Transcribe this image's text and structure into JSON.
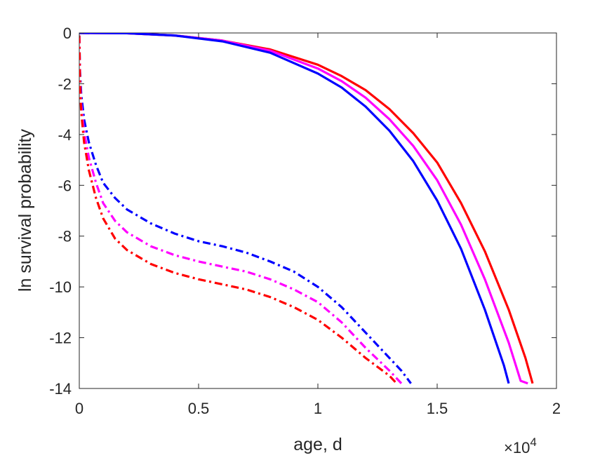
{
  "chart_data": {
    "type": "line",
    "title": "",
    "xlabel": "age, d",
    "ylabel": "ln survival probability",
    "x_exponent_label": "×10",
    "x_exponent_power": "4",
    "xlim": [
      0,
      20000
    ],
    "ylim": [
      -14,
      0
    ],
    "x_ticks": [
      {
        "value": 0,
        "label": "0"
      },
      {
        "value": 5000,
        "label": "0.5"
      },
      {
        "value": 10000,
        "label": "1"
      },
      {
        "value": 15000,
        "label": "1.5"
      },
      {
        "value": 20000,
        "label": "2"
      }
    ],
    "y_ticks": [
      {
        "value": 0,
        "label": "0"
      },
      {
        "value": -2,
        "label": "-2"
      },
      {
        "value": -4,
        "label": "-4"
      },
      {
        "value": -6,
        "label": "-6"
      },
      {
        "value": -8,
        "label": "-8"
      },
      {
        "value": -10,
        "label": "-10"
      },
      {
        "value": -12,
        "label": "-12"
      },
      {
        "value": -14,
        "label": "-14"
      }
    ],
    "grid": false,
    "legend": "none",
    "series": [
      {
        "color": "#ff0000",
        "style": "solid",
        "points": [
          [
            0,
            0
          ],
          [
            2000,
            -0.01
          ],
          [
            4000,
            -0.1
          ],
          [
            6000,
            -0.3
          ],
          [
            8000,
            -0.65
          ],
          [
            10000,
            -1.25
          ],
          [
            11000,
            -1.7
          ],
          [
            12000,
            -2.25
          ],
          [
            13000,
            -3.0
          ],
          [
            14000,
            -3.95
          ],
          [
            15000,
            -5.1
          ],
          [
            16000,
            -6.7
          ],
          [
            17000,
            -8.6
          ],
          [
            18000,
            -10.9
          ],
          [
            18700,
            -12.8
          ],
          [
            19000,
            -13.8
          ]
        ]
      },
      {
        "color": "#ff00ff",
        "style": "solid",
        "points": [
          [
            0,
            0
          ],
          [
            2000,
            -0.01
          ],
          [
            4000,
            -0.1
          ],
          [
            6000,
            -0.3
          ],
          [
            8000,
            -0.7
          ],
          [
            10000,
            -1.4
          ],
          [
            11000,
            -1.9
          ],
          [
            12000,
            -2.55
          ],
          [
            13000,
            -3.4
          ],
          [
            14000,
            -4.45
          ],
          [
            15000,
            -5.8
          ],
          [
            16000,
            -7.55
          ],
          [
            17000,
            -9.7
          ],
          [
            18000,
            -12.2
          ],
          [
            18500,
            -13.7
          ],
          [
            18800,
            -13.8
          ]
        ]
      },
      {
        "color": "#0000ff",
        "style": "solid",
        "points": [
          [
            0,
            0
          ],
          [
            2000,
            -0.01
          ],
          [
            4000,
            -0.1
          ],
          [
            6000,
            -0.33
          ],
          [
            8000,
            -0.78
          ],
          [
            10000,
            -1.6
          ],
          [
            11000,
            -2.15
          ],
          [
            12000,
            -2.9
          ],
          [
            13000,
            -3.85
          ],
          [
            14000,
            -5.05
          ],
          [
            15000,
            -6.6
          ],
          [
            16000,
            -8.5
          ],
          [
            17000,
            -10.9
          ],
          [
            17800,
            -13.1
          ],
          [
            18000,
            -13.8
          ]
        ]
      },
      {
        "color": "#0000ff",
        "style": "dashdot",
        "points": [
          [
            0,
            -0.1
          ],
          [
            30,
            -1.5
          ],
          [
            80,
            -2.4
          ],
          [
            200,
            -3.4
          ],
          [
            400,
            -4.3
          ],
          [
            700,
            -5.2
          ],
          [
            1000,
            -5.9
          ],
          [
            1500,
            -6.5
          ],
          [
            2000,
            -6.95
          ],
          [
            3000,
            -7.5
          ],
          [
            4000,
            -7.9
          ],
          [
            5000,
            -8.2
          ],
          [
            6000,
            -8.4
          ],
          [
            7000,
            -8.65
          ],
          [
            8000,
            -9.0
          ],
          [
            9000,
            -9.4
          ],
          [
            10000,
            -10.0
          ],
          [
            11000,
            -10.8
          ],
          [
            12000,
            -11.8
          ],
          [
            13000,
            -12.8
          ],
          [
            13500,
            -13.3
          ],
          [
            13900,
            -13.8
          ]
        ]
      },
      {
        "color": "#ff00ff",
        "style": "dashdot",
        "points": [
          [
            0,
            -0.1
          ],
          [
            30,
            -1.8
          ],
          [
            80,
            -2.8
          ],
          [
            200,
            -3.9
          ],
          [
            400,
            -4.9
          ],
          [
            700,
            -5.9
          ],
          [
            1000,
            -6.7
          ],
          [
            1500,
            -7.4
          ],
          [
            2000,
            -7.85
          ],
          [
            3000,
            -8.4
          ],
          [
            4000,
            -8.75
          ],
          [
            5000,
            -9.0
          ],
          [
            6000,
            -9.2
          ],
          [
            7000,
            -9.4
          ],
          [
            8000,
            -9.7
          ],
          [
            9000,
            -10.1
          ],
          [
            10000,
            -10.6
          ],
          [
            11000,
            -11.4
          ],
          [
            12000,
            -12.4
          ],
          [
            13000,
            -13.3
          ],
          [
            13500,
            -13.8
          ]
        ]
      },
      {
        "color": "#ff0000",
        "style": "dashdot",
        "points": [
          [
            0,
            -0.1
          ],
          [
            30,
            -2.0
          ],
          [
            80,
            -3.1
          ],
          [
            200,
            -4.3
          ],
          [
            400,
            -5.4
          ],
          [
            700,
            -6.5
          ],
          [
            1000,
            -7.3
          ],
          [
            1500,
            -8.1
          ],
          [
            2000,
            -8.55
          ],
          [
            3000,
            -9.1
          ],
          [
            4000,
            -9.45
          ],
          [
            5000,
            -9.7
          ],
          [
            6000,
            -9.9
          ],
          [
            7000,
            -10.1
          ],
          [
            8000,
            -10.4
          ],
          [
            9000,
            -10.8
          ],
          [
            10000,
            -11.3
          ],
          [
            11000,
            -12.0
          ],
          [
            12000,
            -12.8
          ],
          [
            13000,
            -13.5
          ],
          [
            13300,
            -13.8
          ]
        ]
      }
    ]
  }
}
